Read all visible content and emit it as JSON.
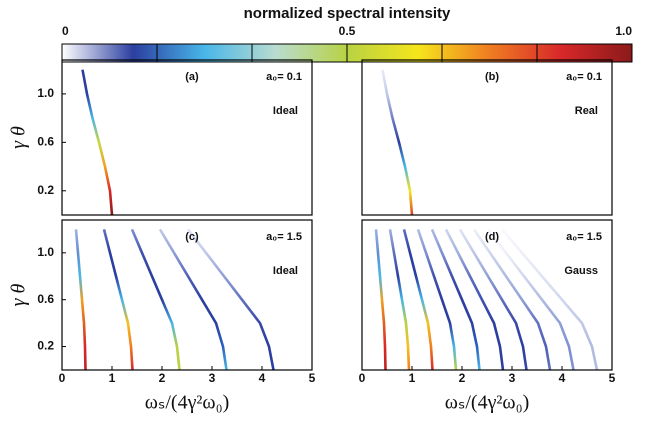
{
  "colorbar": {
    "title": "normalized spectral intensity",
    "lim": [
      0,
      1
    ],
    "ticks": [
      0,
      0.5,
      {
        "value": 1,
        "label": "1.0"
      }
    ],
    "colormap": [
      "#ffffff",
      "#2b3fa0",
      "#49b6e8",
      "#b9dcd0",
      "#b8d243",
      "#f6e51c",
      "#ef7d22",
      "#d8282a",
      "#8b1a1a"
    ]
  },
  "chart_data": [
    {
      "type": "line",
      "label": "(a)",
      "param": "a₀= 0.1",
      "mode": "Ideal",
      "xlim": [
        0,
        5
      ],
      "ylim": [
        0,
        1.28
      ],
      "yticks": [
        0.2,
        0.6,
        {
          "value": 1,
          "label": "1.0"
        }
      ],
      "ylabel": "γ θ",
      "series": [
        {
          "x": [
            1.0,
            0.96,
            0.86,
            0.74,
            0.61,
            0.5,
            0.41
          ],
          "values": [
            0,
            0.2,
            0.4,
            0.6,
            0.8,
            1.0,
            1.2
          ],
          "colors": [
            "#8b1a1a",
            "#d8282a",
            "#f0a020",
            "#c8d840",
            "#49b6e8",
            "#2b3fa0",
            "#2b3fa0"
          ]
        }
      ]
    },
    {
      "type": "line",
      "label": "(b)",
      "param": "a₀= 0.1",
      "mode": "Real",
      "xlim": [
        0,
        5
      ],
      "ylim": [
        0,
        1.28
      ],
      "series": [
        {
          "x": [
            1.0,
            0.96,
            0.86,
            0.74,
            0.61,
            0.5,
            0.41
          ],
          "values": [
            0,
            0.2,
            0.4,
            0.6,
            0.8,
            1.0,
            1.2
          ],
          "colors": [
            "#e04020",
            "#f6e51c",
            "#49b6e8",
            "#2b3fa0",
            "#7080c0",
            "#c0c8e8",
            "#e8ecf8"
          ]
        }
      ]
    },
    {
      "type": "line",
      "label": "(c)",
      "param": "a₀= 1.5",
      "mode": "Ideal",
      "xlim": [
        0,
        5
      ],
      "ylim": [
        0,
        1.28
      ],
      "xticks": [
        0,
        1,
        2,
        3,
        4,
        5
      ],
      "yticks": [
        0.2,
        0.6,
        {
          "value": 1,
          "label": "1.0"
        }
      ],
      "xlabel": "ωₛ/(4γ²ω₀)",
      "ylabel": "γ θ",
      "series": [
        {
          "x": [
            0.47,
            0.46,
            0.44,
            0.4,
            0.36,
            0.32,
            0.28
          ],
          "values": [
            0,
            0.2,
            0.4,
            0.6,
            0.8,
            1.0,
            1.2
          ],
          "colors": [
            "#c02020",
            "#d8282a",
            "#e06020",
            "#f0a020",
            "#49b6e8",
            "#6090d0",
            "#a0b0e0"
          ]
        },
        {
          "x": [
            1.41,
            1.38,
            1.32,
            1.2,
            1.08,
            0.96,
            0.84
          ],
          "values": [
            0,
            0.2,
            0.4,
            0.6,
            0.8,
            1.0,
            1.2
          ],
          "colors": [
            "#d8282a",
            "#ef7d22",
            "#f6c020",
            "#49b6e8",
            "#2b3fa0",
            "#2b3fa0",
            "#6070c0"
          ]
        },
        {
          "x": [
            2.35,
            2.3,
            2.2,
            2.0,
            1.8,
            1.6,
            1.4
          ],
          "values": [
            0,
            0.2,
            0.4,
            0.6,
            0.8,
            1.0,
            1.2
          ],
          "colors": [
            "#b8d243",
            "#b8d243",
            "#49b6e8",
            "#2b3fa0",
            "#2b3fa0",
            "#4050b0",
            "#8090d0"
          ]
        },
        {
          "x": [
            3.29,
            3.22,
            3.08,
            2.8,
            2.52,
            2.24,
            1.96
          ],
          "values": [
            0,
            0.2,
            0.4,
            0.6,
            0.8,
            1.0,
            1.2
          ],
          "colors": [
            "#49b6e8",
            "#2b60c0",
            "#2b3fa0",
            "#2b3fa0",
            "#5060b8",
            "#90a0d8",
            "#c0c8e8"
          ]
        },
        {
          "x": [
            4.23,
            4.14,
            3.96,
            3.6,
            3.24,
            2.88,
            2.52
          ],
          "values": [
            0,
            0.2,
            0.4,
            0.6,
            0.8,
            1.0,
            1.2
          ],
          "colors": [
            "#2b3fa0",
            "#2b3fa0",
            "#3848a8",
            "#6070c0",
            "#90a0d8",
            "#c0c8e8",
            "#e0e4f4"
          ]
        }
      ]
    },
    {
      "type": "line",
      "label": "(d)",
      "param": "a₀= 1.5",
      "mode": "Gauss",
      "xlim": [
        0,
        5
      ],
      "ylim": [
        0,
        1.28
      ],
      "xticks": [
        0,
        1,
        2,
        3,
        4,
        5
      ],
      "xlabel": "ωₛ/(4γ²ω₀)",
      "series": [
        {
          "x": [
            0.47,
            0.46,
            0.44,
            0.4,
            0.36,
            0.32,
            0.28
          ],
          "values": [
            0,
            0.2,
            0.4,
            0.6,
            0.8,
            1.0,
            1.2
          ],
          "colors": [
            "#c02020",
            "#d8282a",
            "#e06020",
            "#f0a020",
            "#49b6e8",
            "#6090d0",
            "#a0b0e0"
          ]
        },
        {
          "x": [
            0.94,
            0.92,
            0.88,
            0.8,
            0.72,
            0.64,
            0.56
          ],
          "values": [
            0,
            0.2,
            0.4,
            0.6,
            0.8,
            1.0,
            1.2
          ],
          "colors": [
            "#ef7d22",
            "#f6c020",
            "#b8d243",
            "#49b6e8",
            "#2b3fa0",
            "#6070c0",
            "#a0b0e0"
          ]
        },
        {
          "x": [
            1.41,
            1.38,
            1.32,
            1.2,
            1.08,
            0.96,
            0.84
          ],
          "values": [
            0,
            0.2,
            0.4,
            0.6,
            0.8,
            1.0,
            1.2
          ],
          "colors": [
            "#d8282a",
            "#ef7d22",
            "#f6c020",
            "#49b6e8",
            "#2b3fa0",
            "#2b3fa0",
            "#6070c0"
          ]
        },
        {
          "x": [
            1.88,
            1.84,
            1.76,
            1.6,
            1.44,
            1.28,
            1.12
          ],
          "values": [
            0,
            0.2,
            0.4,
            0.6,
            0.8,
            1.0,
            1.2
          ],
          "colors": [
            "#b8d243",
            "#49b6e8",
            "#2b3fa0",
            "#2b3fa0",
            "#4050b0",
            "#8090d0",
            "#b0bce0"
          ]
        },
        {
          "x": [
            2.35,
            2.3,
            2.2,
            2.0,
            1.8,
            1.6,
            1.4
          ],
          "values": [
            0,
            0.2,
            0.4,
            0.6,
            0.8,
            1.0,
            1.2
          ],
          "colors": [
            "#49b6e8",
            "#2b60c0",
            "#2b3fa0",
            "#2b3fa0",
            "#4050b0",
            "#8090d0",
            "#b0bce0"
          ]
        },
        {
          "x": [
            2.82,
            2.76,
            2.64,
            2.4,
            2.16,
            1.92,
            1.68
          ],
          "values": [
            0,
            0.2,
            0.4,
            0.6,
            0.8,
            1.0,
            1.2
          ],
          "colors": [
            "#2b3fa0",
            "#2b3fa0",
            "#2b3fa0",
            "#4050b0",
            "#6070c0",
            "#a0b0e0",
            "#d0d6ee"
          ]
        },
        {
          "x": [
            3.29,
            3.22,
            3.08,
            2.8,
            2.52,
            2.24,
            1.96
          ],
          "values": [
            0,
            0.2,
            0.4,
            0.6,
            0.8,
            1.0,
            1.2
          ],
          "colors": [
            "#3848a8",
            "#2b3fa0",
            "#3848a8",
            "#6070c0",
            "#90a0d8",
            "#c0c8e8",
            "#e0e4f4"
          ]
        },
        {
          "x": [
            3.76,
            3.68,
            3.52,
            3.2,
            2.88,
            2.56,
            2.24
          ],
          "values": [
            0,
            0.2,
            0.4,
            0.6,
            0.8,
            1.0,
            1.2
          ],
          "colors": [
            "#6070c0",
            "#5060b8",
            "#6070c0",
            "#90a0d8",
            "#b0bce0",
            "#d0d6ee",
            "#eef0f8"
          ]
        },
        {
          "x": [
            4.23,
            4.14,
            3.96,
            3.6,
            3.24,
            2.88,
            2.52
          ],
          "values": [
            0,
            0.2,
            0.4,
            0.6,
            0.8,
            1.0,
            1.2
          ],
          "colors": [
            "#8090d0",
            "#8090d0",
            "#90a0d8",
            "#b0bce0",
            "#d0d6ee",
            "#eef0f8",
            "#f6f7fc"
          ]
        },
        {
          "x": [
            4.7,
            4.6,
            4.4,
            4.0,
            3.6,
            3.2,
            2.8
          ],
          "values": [
            0,
            0.2,
            0.4,
            0.6,
            0.8,
            1.0,
            1.2
          ],
          "colors": [
            "#b0bce0",
            "#b0bce0",
            "#c0c8e8",
            "#d0d6ee",
            "#e0e4f4",
            "#eef0f8",
            "#f8f9fd"
          ]
        }
      ]
    }
  ]
}
